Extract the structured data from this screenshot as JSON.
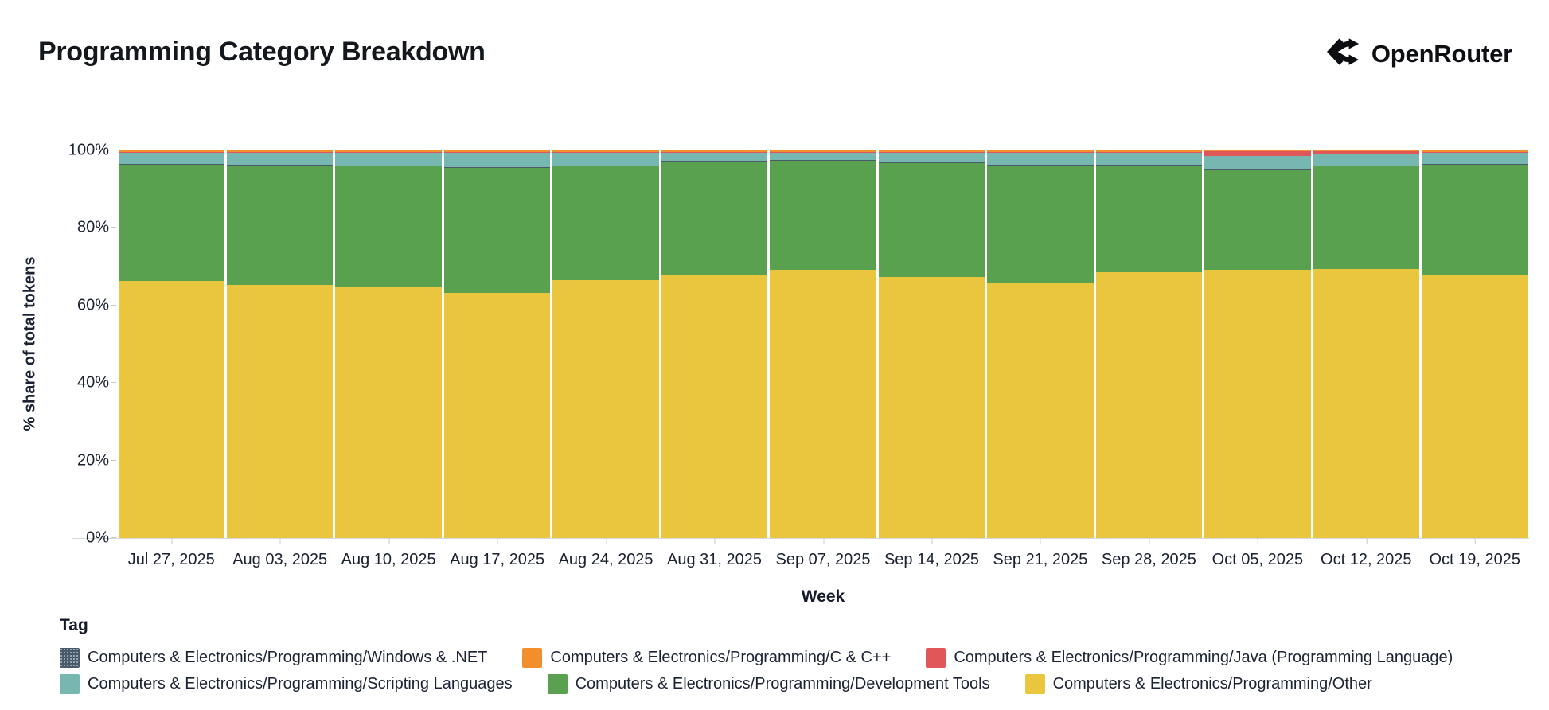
{
  "header": {
    "title": "Programming Category Breakdown",
    "brand": "OpenRouter"
  },
  "chart": {
    "y_axis_title": "% share of total tokens",
    "x_axis_title": "Week",
    "y_ticks": [
      "0%",
      "20%",
      "40%",
      "60%",
      "80%",
      "100%"
    ]
  },
  "legend": {
    "title": "Tag",
    "items": [
      {
        "label": "Computers & Electronics/Programming/Windows & .NET",
        "color": "#4a5a6a",
        "pattern": true
      },
      {
        "label": "Computers & Electronics/Programming/C & C++",
        "color": "#F28E2B",
        "pattern": false
      },
      {
        "label": "Computers & Electronics/Programming/Java (Programming Language)",
        "color": "#E15759",
        "pattern": false
      },
      {
        "label": "Computers & Electronics/Programming/Scripting Languages",
        "color": "#76B7B2",
        "pattern": false
      },
      {
        "label": "Computers & Electronics/Programming/Development Tools",
        "color": "#59A14F",
        "pattern": false
      },
      {
        "label": "Computers & Electronics/Programming/Other",
        "color": "#EAC63F",
        "pattern": false
      }
    ]
  },
  "chart_data": {
    "type": "bar",
    "stacked": true,
    "title": "Programming Category Breakdown",
    "xlabel": "Week",
    "ylabel": "% share of total tokens",
    "ylim": [
      0,
      100
    ],
    "grid": false,
    "legend_position": "bottom",
    "categories": [
      "Jul 27, 2025",
      "Aug 03, 2025",
      "Aug 10, 2025",
      "Aug 17, 2025",
      "Aug 24, 2025",
      "Aug 31, 2025",
      "Sep 07, 2025",
      "Sep 14, 2025",
      "Sep 21, 2025",
      "Sep 28, 2025",
      "Oct 05, 2025",
      "Oct 12, 2025",
      "Oct 19, 2025"
    ],
    "series": [
      {
        "name": "Computers & Electronics/Programming/Other",
        "short": "other",
        "color": "#EAC63F",
        "pattern": false,
        "values": [
          66.3,
          65.2,
          64.7,
          63.3,
          66.5,
          67.7,
          69.2,
          67.3,
          65.9,
          68.6,
          69.2,
          69.4,
          68.0
        ]
      },
      {
        "name": "Computers & Electronics/Programming/Development Tools",
        "short": "development-tools",
        "color": "#59A14F",
        "pattern": false,
        "values": [
          30.2,
          31.0,
          31.3,
          32.2,
          29.5,
          29.5,
          28.3,
          29.6,
          30.3,
          27.6,
          26.0,
          26.5,
          28.5
        ]
      },
      {
        "name": "Computers & Electronics/Programming/Windows & .NET",
        "short": "windows-dotnet",
        "color": "#4a5a6a",
        "pattern": true,
        "values": [
          0.1,
          0.1,
          0.1,
          0.1,
          0.1,
          0.1,
          0.1,
          0.1,
          0.1,
          0.1,
          0.1,
          0.1,
          0.1
        ]
      },
      {
        "name": "Computers & Electronics/Programming/Scripting Languages",
        "short": "scripting-languages",
        "color": "#76B7B2",
        "pattern": false,
        "values": [
          3.0,
          3.3,
          3.5,
          3.9,
          3.5,
          2.3,
          2.0,
          2.6,
          3.3,
          3.3,
          3.3,
          2.9,
          2.9
        ]
      },
      {
        "name": "Computers & Electronics/Programming/Java (Programming Language)",
        "short": "java",
        "color": "#E15759",
        "pattern": false,
        "values": [
          0.05,
          0.05,
          0.05,
          0.1,
          0.05,
          0.05,
          0.05,
          0.05,
          0.05,
          0.05,
          1.2,
          0.9,
          0.1
        ]
      },
      {
        "name": "Computers & Electronics/Programming/C & C++",
        "short": "c-cpp",
        "color": "#F28E2B",
        "pattern": false,
        "values": [
          0.35,
          0.35,
          0.35,
          0.4,
          0.35,
          0.35,
          0.35,
          0.35,
          0.35,
          0.35,
          0.2,
          0.2,
          0.4
        ]
      }
    ]
  }
}
